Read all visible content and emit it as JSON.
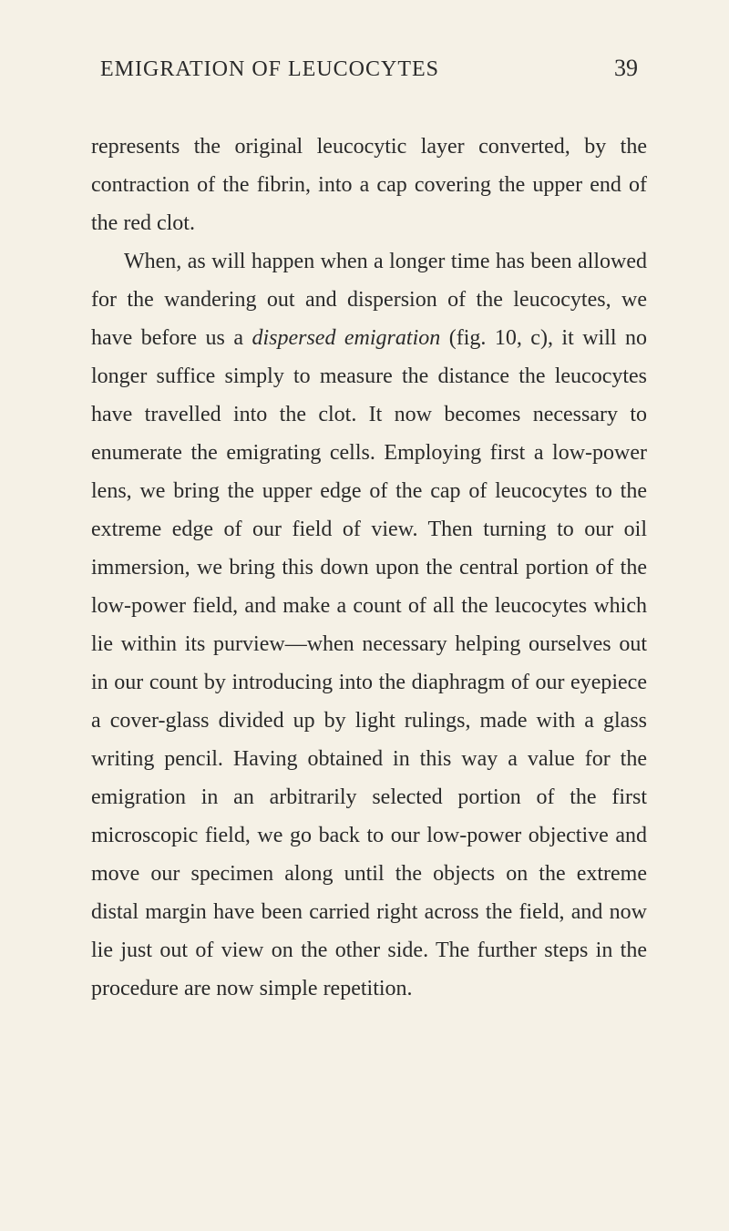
{
  "header": {
    "running_title": "EMIGRATION OF LEUCOCYTES",
    "page_number": "39"
  },
  "paragraphs": [
    {
      "segments": [
        {
          "text": "represents the original leucocytic layer converted, by the contraction of the fibrin, into a cap covering the upper end of the red clot.",
          "italic": false
        }
      ]
    },
    {
      "segments": [
        {
          "text": "When, as will happen when a longer time has been allowed for the wandering out and dispersion of the leucocytes, we have before us a ",
          "italic": false
        },
        {
          "text": "dispersed emigration",
          "italic": true
        },
        {
          "text": " (fig. 10, c), it will no longer suffice simply to measure the distance the leucocytes have travelled into the clot. It now becomes necessary to enumerate the emigrating cells. Employing first a low-power lens, we bring the upper edge of the cap of leucocytes to the extreme edge of our field of view. Then turning to our oil immersion, we bring this down upon the central portion of the low-power field, and make a count of all the leucocytes which lie within its purview—when necessary helping our­selves out in our count by introducing into the diaphragm of our eyepiece a cover-glass divided up by light rulings, made with a glass writing pencil. Having obtained in this way a value for the emigra­tion in an arbitrarily selected portion of the first microscopic field, we go back to our low-power objective and move our specimen along until the objects on the extreme distal margin have been carried right across the field, and now lie just out of view on the other side. The further steps in the procedure are now simple repetition.",
          "italic": false
        }
      ]
    }
  ]
}
